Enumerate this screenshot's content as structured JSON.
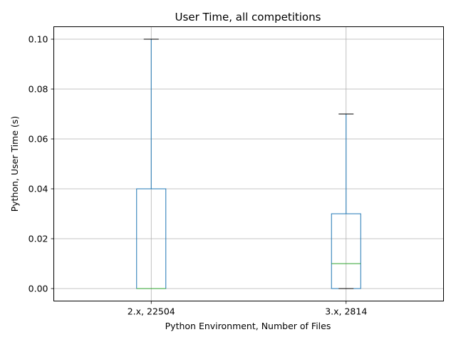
{
  "chart_data": {
    "type": "boxplot",
    "title": "User Time, all competitions",
    "xlabel": "Python Environment, Number of Files",
    "ylabel": "Python, User Time (s)",
    "ylim": [
      -0.005,
      0.105
    ],
    "yticks": [
      "0.00",
      "0.02",
      "0.04",
      "0.06",
      "0.08",
      "0.10"
    ],
    "ytick_values": [
      0.0,
      0.02,
      0.04,
      0.06,
      0.08,
      0.1
    ],
    "grid": true,
    "categories": [
      "2.x, 22504",
      "3.x, 2814"
    ],
    "boxes": [
      {
        "category": "2.x, 22504",
        "whisker_low": 0.0,
        "q1": 0.0,
        "median": 0.0,
        "q3": 0.04,
        "whisker_high": 0.1
      },
      {
        "category": "3.x, 2814",
        "whisker_low": 0.0,
        "q1": 0.0,
        "median": 0.01,
        "q3": 0.03,
        "whisker_high": 0.07
      }
    ],
    "colors": {
      "box": "#1f77b4",
      "median": "#2ca02c",
      "cap": "#000000",
      "grid": "#b0b0b0"
    }
  }
}
